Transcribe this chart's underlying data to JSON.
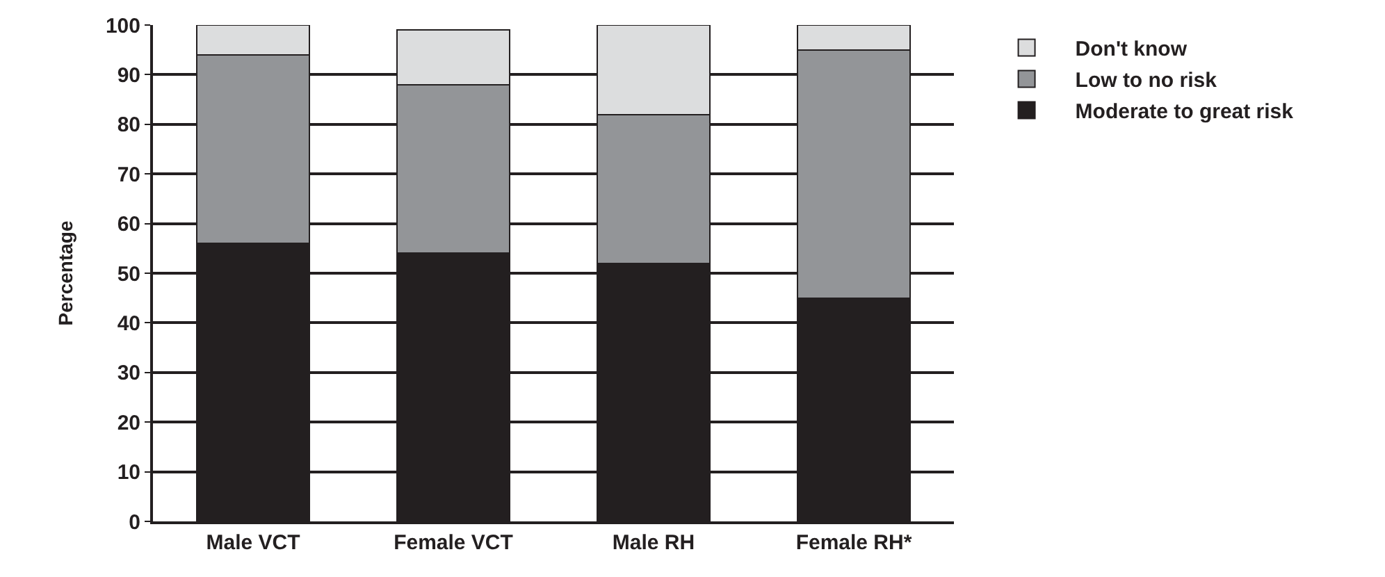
{
  "chart_data": {
    "type": "bar",
    "ylabel": "Percentage",
    "categories": [
      "Male VCT",
      "Female VCT",
      "Male RH",
      "Female RH*"
    ],
    "stacked": true,
    "series": [
      {
        "name": "Moderate to great risk",
        "color": "#231f20",
        "values": [
          56,
          54,
          52,
          45
        ]
      },
      {
        "name": "Low to no risk",
        "color": "#939598",
        "values": [
          38,
          34,
          30,
          50
        ]
      },
      {
        "name": "Don't know",
        "color": "#dcddde",
        "values": [
          6,
          11,
          18,
          5
        ]
      }
    ],
    "ylim": [
      0,
      100
    ],
    "yticks": [
      0,
      10,
      20,
      30,
      40,
      50,
      60,
      70,
      80,
      90,
      100
    ],
    "grid": "y",
    "legend": "right"
  }
}
